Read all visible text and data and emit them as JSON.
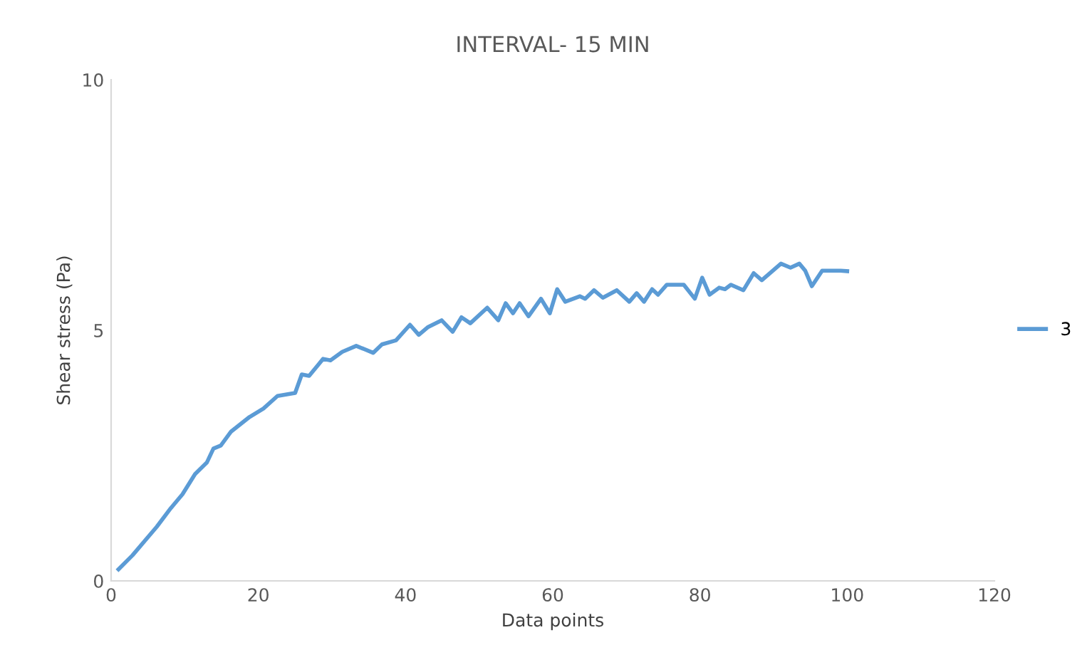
{
  "chart_data": {
    "type": "line",
    "title": "INTERVAL- 15 MIN",
    "xlabel": "Data points",
    "ylabel": "Shear stress (Pa)",
    "xlim": [
      0,
      120
    ],
    "xticks": [
      0,
      20,
      40,
      60,
      80,
      100,
      120
    ],
    "ylim": [
      0,
      10
    ],
    "yticks": [
      0,
      5,
      10
    ],
    "grid": false,
    "legend": "right",
    "marker": "none",
    "line_style": "solid",
    "series": [
      {
        "name": "3",
        "color": "#5b9bd5",
        "x": [
          1,
          2.9,
          6.2,
          8.1,
          9.7,
          11.4,
          13,
          13.9,
          14.9,
          16.3,
          18.8,
          20.7,
          22.6,
          25,
          25.9,
          26.9,
          28.8,
          29.8,
          31.4,
          33.3,
          35.6,
          36.8,
          38.7,
          40.6,
          41.8,
          43,
          44.9,
          46.4,
          47.6,
          48.8,
          51.1,
          52.6,
          53.6,
          54.6,
          55.5,
          56.7,
          58.4,
          59.6,
          60.6,
          61.7,
          63.7,
          64.4,
          65.6,
          66.8,
          68.7,
          70.4,
          71.4,
          72.4,
          73.5,
          74.3,
          75.5,
          77.8,
          79.3,
          80.3,
          81.3,
          82.6,
          83.4,
          84.2,
          85.9,
          87.3,
          88.4,
          91,
          92.3,
          93.5,
          94.3,
          95.2,
          96.6,
          99.1,
          100
        ],
        "values": [
          0.23,
          0.51,
          1.08,
          1.45,
          1.73,
          2.13,
          2.36,
          2.64,
          2.7,
          2.98,
          3.27,
          3.44,
          3.69,
          3.75,
          4.12,
          4.09,
          4.43,
          4.4,
          4.57,
          4.69,
          4.55,
          4.72,
          4.8,
          5.11,
          4.91,
          5.06,
          5.2,
          4.97,
          5.26,
          5.14,
          5.45,
          5.2,
          5.54,
          5.34,
          5.54,
          5.28,
          5.63,
          5.34,
          5.82,
          5.57,
          5.68,
          5.63,
          5.8,
          5.65,
          5.8,
          5.57,
          5.74,
          5.57,
          5.82,
          5.71,
          5.91,
          5.91,
          5.63,
          6.05,
          5.71,
          5.85,
          5.82,
          5.91,
          5.8,
          6.14,
          6.0,
          6.33,
          6.25,
          6.33,
          6.19,
          5.88,
          6.19,
          6.19,
          6.18
        ]
      }
    ]
  }
}
